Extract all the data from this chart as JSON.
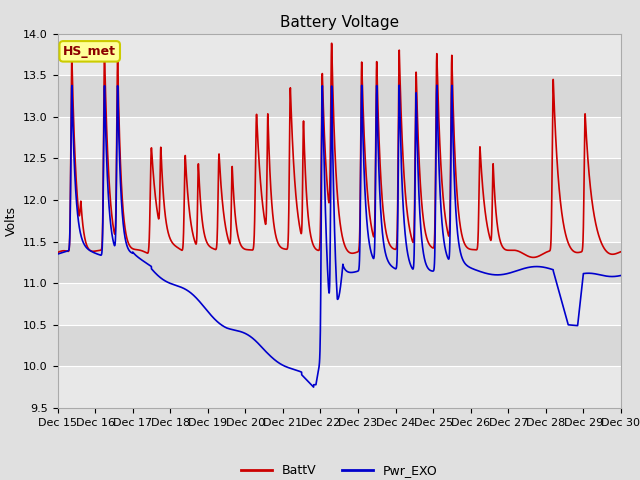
{
  "title": "Battery Voltage",
  "ylabel": "Volts",
  "ylim": [
    9.5,
    14.0
  ],
  "yticks": [
    9.5,
    10.0,
    10.5,
    11.0,
    11.5,
    12.0,
    12.5,
    13.0,
    13.5,
    14.0
  ],
  "x_tick_labels": [
    "Dec 15",
    "Dec 16",
    "Dec 17",
    "Dec 18",
    "Dec 19",
    "Dec 20",
    "Dec 21",
    "Dec 22",
    "Dec 23",
    "Dec 24",
    "Dec 25",
    "Dec 26",
    "Dec 27",
    "Dec 28",
    "Dec 29",
    "Dec 30"
  ],
  "battv_color": "#cc0000",
  "pwr_exo_color": "#0000cc",
  "legend_labels": [
    "BattV",
    "Pwr_EXO"
  ],
  "annotation_text": "HS_met",
  "annotation_color": "#8b0000",
  "annotation_bg": "#ffff99",
  "annotation_border": "#cccc00",
  "fig_bg_color": "#e0e0e0",
  "plot_bg_light": "#e8e8e8",
  "plot_bg_dark": "#d8d8d8",
  "grid_color": "#c8c8c8",
  "title_fontsize": 11,
  "label_fontsize": 9,
  "tick_fontsize": 8,
  "line_width": 1.2
}
